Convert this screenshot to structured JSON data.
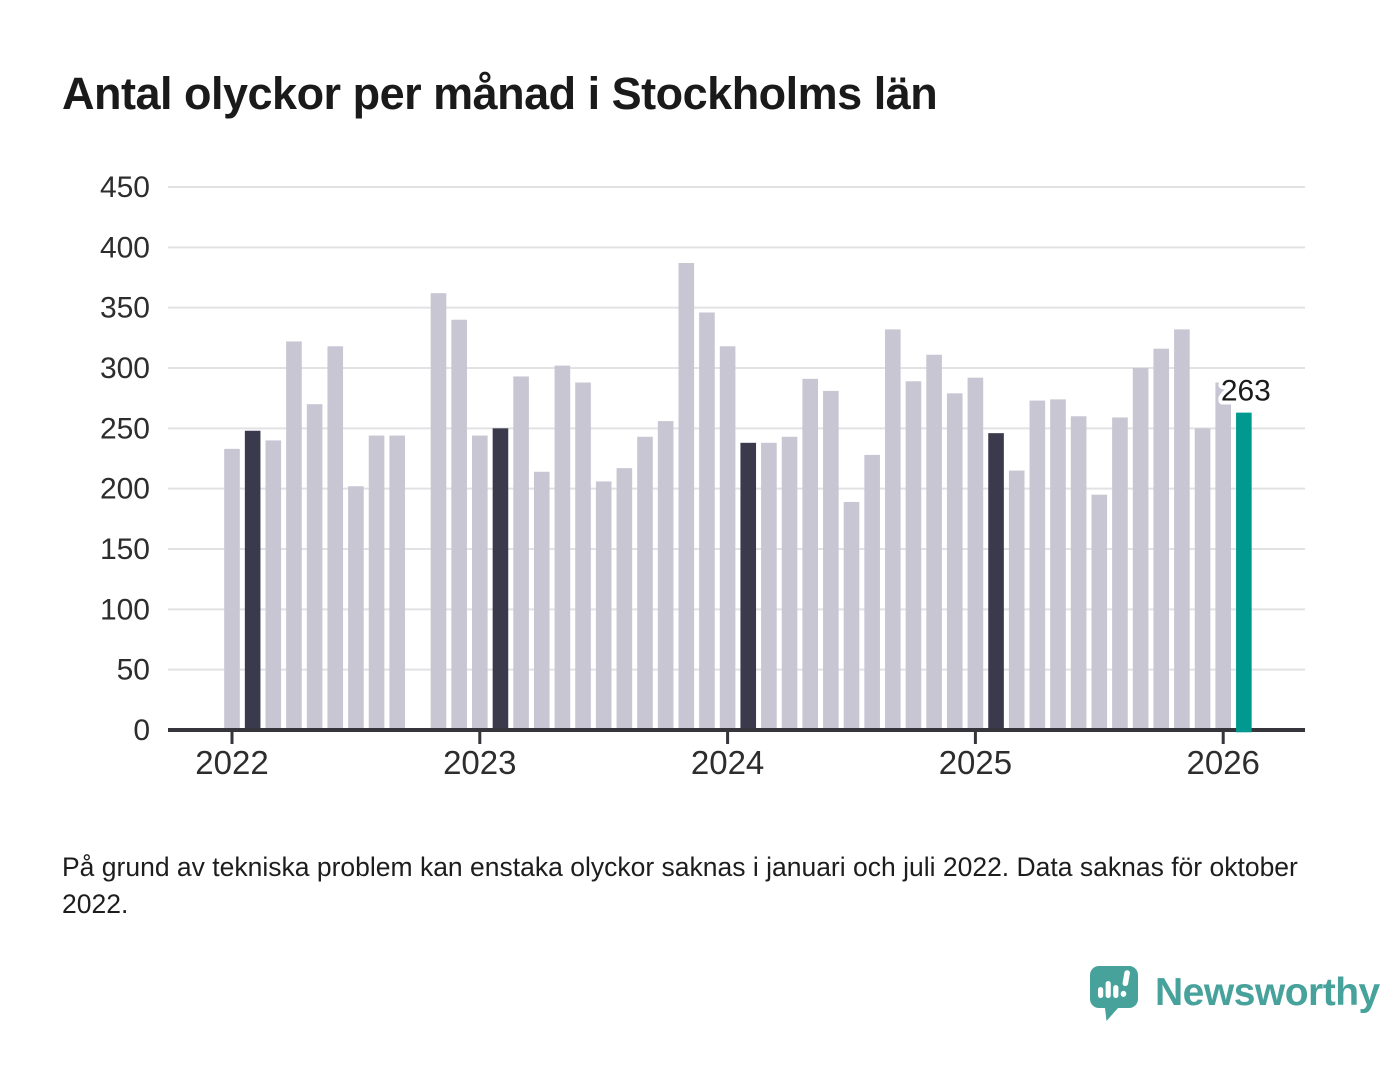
{
  "title": "Antal olyckor per månad i Stockholms län",
  "footnote": "På grund av tekniska problem kan enstaka olyckor saknas i januari och juli 2022. Data saknas för oktober 2022.",
  "branding": {
    "name": "Newsworthy",
    "icon": "newsworthy-speech-bubble-chart-icon",
    "color": "#47a29b"
  },
  "colors": {
    "background": "#ffffff",
    "bar_default": "#c7c6d2",
    "bar_same_month": "#3a3a4c",
    "bar_latest": "#009990",
    "gridline": "#e2e2e5",
    "axis": "#35353b",
    "tick_label": "#2d2d2d",
    "annotation_text": "#1a1a1a",
    "annotation_halo": "#ffffff"
  },
  "chart_data": {
    "type": "bar",
    "title": "Antal olyckor per månad i Stockholms län",
    "xlabel": "",
    "ylabel": "",
    "ylim": [
      0,
      450
    ],
    "y_ticks": [
      0,
      50,
      100,
      150,
      200,
      250,
      300,
      350,
      400,
      450
    ],
    "x_tick_labels": [
      "2022",
      "2023",
      "2024",
      "2025",
      "2026"
    ],
    "grid": true,
    "legend": false,
    "missing_months": [
      "2022-10"
    ],
    "highlight_same_month": [
      "2022-02",
      "2023-02",
      "2024-02",
      "2025-02"
    ],
    "latest_month": "2026-02",
    "annotation": {
      "month": "2026-02",
      "label": "263"
    },
    "series": [
      {
        "name": "Antal olyckor",
        "points": [
          {
            "month": "2022-01",
            "value": 233
          },
          {
            "month": "2022-02",
            "value": 248
          },
          {
            "month": "2022-03",
            "value": 240
          },
          {
            "month": "2022-04",
            "value": 322
          },
          {
            "month": "2022-05",
            "value": 270
          },
          {
            "month": "2022-06",
            "value": 318
          },
          {
            "month": "2022-07",
            "value": 202
          },
          {
            "month": "2022-08",
            "value": 244
          },
          {
            "month": "2022-09",
            "value": 244
          },
          {
            "month": "2022-11",
            "value": 362
          },
          {
            "month": "2022-12",
            "value": 340
          },
          {
            "month": "2023-01",
            "value": 244
          },
          {
            "month": "2023-02",
            "value": 250
          },
          {
            "month": "2023-03",
            "value": 293
          },
          {
            "month": "2023-04",
            "value": 214
          },
          {
            "month": "2023-05",
            "value": 302
          },
          {
            "month": "2023-06",
            "value": 288
          },
          {
            "month": "2023-07",
            "value": 206
          },
          {
            "month": "2023-08",
            "value": 217
          },
          {
            "month": "2023-09",
            "value": 243
          },
          {
            "month": "2023-10",
            "value": 256
          },
          {
            "month": "2023-11",
            "value": 387
          },
          {
            "month": "2023-12",
            "value": 346
          },
          {
            "month": "2024-01",
            "value": 318
          },
          {
            "month": "2024-02",
            "value": 238
          },
          {
            "month": "2024-03",
            "value": 238
          },
          {
            "month": "2024-04",
            "value": 243
          },
          {
            "month": "2024-05",
            "value": 291
          },
          {
            "month": "2024-06",
            "value": 281
          },
          {
            "month": "2024-07",
            "value": 189
          },
          {
            "month": "2024-08",
            "value": 228
          },
          {
            "month": "2024-09",
            "value": 332
          },
          {
            "month": "2024-10",
            "value": 289
          },
          {
            "month": "2024-11",
            "value": 311
          },
          {
            "month": "2024-12",
            "value": 279
          },
          {
            "month": "2025-01",
            "value": 292
          },
          {
            "month": "2025-02",
            "value": 246
          },
          {
            "month": "2025-03",
            "value": 215
          },
          {
            "month": "2025-04",
            "value": 273
          },
          {
            "month": "2025-05",
            "value": 274
          },
          {
            "month": "2025-06",
            "value": 260
          },
          {
            "month": "2025-07",
            "value": 195
          },
          {
            "month": "2025-08",
            "value": 259
          },
          {
            "month": "2025-09",
            "value": 300
          },
          {
            "month": "2025-10",
            "value": 316
          },
          {
            "month": "2025-11",
            "value": 332
          },
          {
            "month": "2025-12",
            "value": 250
          },
          {
            "month": "2026-01",
            "value": 288
          },
          {
            "month": "2026-02",
            "value": 263
          }
        ]
      }
    ]
  }
}
